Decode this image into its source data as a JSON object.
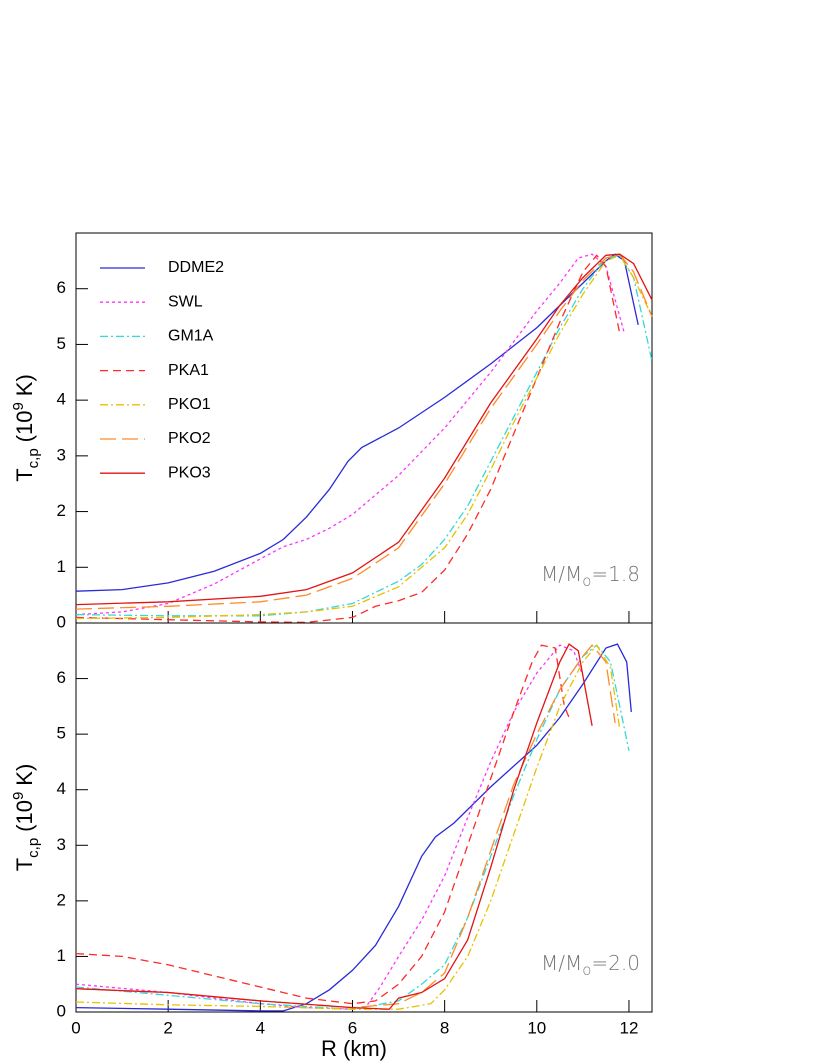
{
  "chart_data": [
    {
      "type": "line",
      "ylabel": {
        "main": "T",
        "sub": "c,p",
        "pre": "(10",
        "sup": "9",
        "post": "K)"
      },
      "annotation": {
        "main": "M/M",
        "sub": "o",
        "post": "=1.8"
      },
      "xlim": [
        0,
        12.5
      ],
      "ylim": [
        0,
        7
      ],
      "xticks": [
        0,
        2,
        4,
        6,
        8,
        10,
        12
      ],
      "xtick_labels": false,
      "yticks": [
        0,
        1,
        2,
        3,
        4,
        5,
        6
      ],
      "legend": "upper left",
      "series": [
        {
          "name": "DDME2",
          "color": "#2a2ad8",
          "dash": "none",
          "x": [
            0,
            1,
            2,
            3,
            4,
            4.5,
            5,
            5.5,
            5.9,
            6.2,
            7,
            8,
            9,
            10,
            11,
            11.5,
            11.7,
            11.9,
            12.2
          ],
          "values": [
            0.57,
            0.6,
            0.72,
            0.93,
            1.25,
            1.5,
            1.9,
            2.4,
            2.9,
            3.15,
            3.5,
            4.05,
            4.65,
            5.3,
            6.1,
            6.5,
            6.62,
            6.5,
            5.35
          ]
        },
        {
          "name": "SWL",
          "color": "#ff33ff",
          "dash": "3,3",
          "x": [
            0,
            1,
            2,
            3,
            4,
            4.5,
            5,
            5.5,
            6,
            7,
            8,
            9,
            10,
            10.5,
            10.9,
            11.2,
            11.5,
            11.9
          ],
          "values": [
            0.15,
            0.2,
            0.35,
            0.7,
            1.15,
            1.37,
            1.5,
            1.7,
            1.95,
            2.65,
            3.5,
            4.5,
            5.6,
            6.1,
            6.55,
            6.62,
            6.4,
            5.2
          ]
        },
        {
          "name": "GM1A",
          "color": "#33d8d8",
          "dash": "8,3,2,3",
          "x": [
            0,
            2,
            4,
            5,
            6,
            7,
            7.5,
            8,
            8.5,
            9,
            9.5,
            10,
            10.5,
            11,
            11.5,
            11.8,
            12.1,
            12.5
          ],
          "values": [
            0.15,
            0.13,
            0.13,
            0.2,
            0.35,
            0.75,
            1.05,
            1.5,
            2.1,
            2.9,
            3.7,
            4.5,
            5.3,
            6.0,
            6.55,
            6.6,
            6.2,
            4.7
          ]
        },
        {
          "name": "PKA1",
          "color": "#ff2a2a",
          "dash": "8,5",
          "x": [
            0,
            2,
            4,
            5,
            6,
            6.5,
            7,
            7.5,
            8,
            8.5,
            9,
            9.5,
            10,
            10.5,
            11,
            11.3,
            11.5,
            11.8
          ],
          "values": [
            0.1,
            0.06,
            0.02,
            0.01,
            0.1,
            0.3,
            0.4,
            0.55,
            0.95,
            1.6,
            2.4,
            3.4,
            4.4,
            5.4,
            6.3,
            6.6,
            6.4,
            5.2
          ]
        },
        {
          "name": "PKO1",
          "color": "#e8c000",
          "dash": "8,3,2,3",
          "x": [
            0,
            2,
            4,
            5,
            6,
            7,
            8,
            8.5,
            9,
            9.5,
            10,
            10.5,
            11,
            11.5,
            11.8,
            12.1,
            12.5
          ],
          "values": [
            0.08,
            0.1,
            0.15,
            0.2,
            0.3,
            0.65,
            1.35,
            1.95,
            2.75,
            3.6,
            4.4,
            5.2,
            5.9,
            6.5,
            6.6,
            6.2,
            5.5
          ]
        },
        {
          "name": "PKO2",
          "color": "#ff8a2a",
          "dash": "16,6",
          "x": [
            0,
            2,
            4,
            5,
            6,
            7,
            8,
            9,
            10,
            10.5,
            11,
            11.5,
            11.8,
            12.1,
            12.5
          ],
          "values": [
            0.25,
            0.3,
            0.38,
            0.5,
            0.8,
            1.35,
            2.5,
            3.85,
            5.0,
            5.6,
            6.15,
            6.55,
            6.62,
            6.3,
            5.5
          ]
        },
        {
          "name": "PKO3",
          "color": "#e01515",
          "dash": "none",
          "x": [
            0,
            2,
            4,
            5,
            6,
            7,
            8,
            9,
            10,
            10.5,
            11,
            11.5,
            11.8,
            12.1,
            12.5
          ],
          "values": [
            0.33,
            0.38,
            0.48,
            0.6,
            0.9,
            1.45,
            2.6,
            3.95,
            5.1,
            5.7,
            6.2,
            6.6,
            6.62,
            6.45,
            5.8
          ]
        }
      ]
    },
    {
      "type": "line",
      "xlabel": "R (km)",
      "ylabel": {
        "main": "T",
        "sub": "c,p",
        "pre": "(10",
        "sup": "9",
        "post": "K)"
      },
      "annotation": {
        "main": "M/M",
        "sub": "o",
        "post": "=2.0"
      },
      "xlim": [
        0,
        12.5
      ],
      "ylim": [
        0,
        7
      ],
      "xticks": [
        0,
        2,
        4,
        6,
        8,
        10,
        12
      ],
      "xtick_labels": true,
      "yticks": [
        0,
        1,
        2,
        3,
        4,
        5,
        6
      ],
      "series": [
        {
          "color": "#2a2ad8",
          "dash": "none",
          "x": [
            0,
            2,
            4,
            4.5,
            5,
            5.5,
            6,
            6.5,
            7,
            7.5,
            7.8,
            8.2,
            9,
            10,
            10.5,
            11,
            11.5,
            11.75,
            11.95,
            12.05
          ],
          "values": [
            0.08,
            0.05,
            0.02,
            0.02,
            0.15,
            0.4,
            0.75,
            1.2,
            1.9,
            2.8,
            3.15,
            3.4,
            4.05,
            4.8,
            5.3,
            5.9,
            6.55,
            6.62,
            6.3,
            5.4
          ]
        },
        {
          "color": "#ff33ff",
          "dash": "3,3",
          "x": [
            0,
            2,
            4,
            5,
            6,
            6.3,
            6.6,
            7,
            7.5,
            8,
            8.5,
            9,
            9.5,
            10,
            10.5,
            10.8,
            11
          ],
          "values": [
            0.5,
            0.35,
            0.15,
            0.08,
            0.05,
            0.1,
            0.45,
            1.0,
            1.65,
            2.45,
            3.5,
            4.5,
            5.4,
            6.1,
            6.6,
            6.5,
            6.05
          ]
        },
        {
          "color": "#33d8d8",
          "dash": "8,3,2,3",
          "x": [
            0,
            2,
            4,
            6,
            7,
            7.5,
            8,
            8.5,
            9,
            9.5,
            10,
            10.5,
            11,
            11.3,
            11.6,
            12
          ],
          "values": [
            0.45,
            0.3,
            0.15,
            0.05,
            0.2,
            0.5,
            0.85,
            1.7,
            2.8,
            3.9,
            4.9,
            5.8,
            6.4,
            6.6,
            6.3,
            4.7
          ]
        },
        {
          "color": "#ff2a2a",
          "dash": "8,5",
          "x": [
            0,
            1,
            2,
            3,
            4,
            5,
            6,
            6.5,
            7,
            7.5,
            8,
            8.5,
            9,
            9.5,
            9.9,
            10.1,
            10.4,
            10.6,
            10.7
          ],
          "values": [
            1.05,
            1.0,
            0.85,
            0.65,
            0.45,
            0.25,
            0.15,
            0.2,
            0.5,
            1.0,
            1.8,
            3.0,
            4.2,
            5.4,
            6.3,
            6.6,
            6.55,
            5.5,
            5.3
          ]
        },
        {
          "color": "#e8c000",
          "dash": "8,3,2,3",
          "x": [
            0,
            2,
            4,
            6,
            7,
            7.7,
            8,
            8.5,
            9,
            9.5,
            10,
            10.5,
            11,
            11.3,
            11.6,
            11.8
          ],
          "values": [
            0.18,
            0.13,
            0.1,
            0.05,
            0.05,
            0.15,
            0.4,
            1.0,
            2.0,
            3.2,
            4.4,
            5.5,
            6.3,
            6.6,
            6.2,
            5.1
          ]
        },
        {
          "color": "#ff8a2a",
          "dash": "16,6",
          "x": [
            0,
            2,
            4,
            6,
            7,
            7.5,
            8,
            8.5,
            9,
            9.5,
            10,
            10.5,
            11,
            11.2,
            11.5,
            11.7
          ],
          "values": [
            0.42,
            0.35,
            0.2,
            0.08,
            0.15,
            0.35,
            0.7,
            1.7,
            2.9,
            4.1,
            5.0,
            5.8,
            6.4,
            6.6,
            6.3,
            5.2
          ]
        },
        {
          "color": "#e01515",
          "dash": "none",
          "x": [
            0,
            2,
            4,
            6,
            6.8,
            7,
            7.5,
            8,
            8.5,
            9,
            9.5,
            10,
            10.5,
            10.7,
            10.9,
            11.2
          ],
          "values": [
            0.42,
            0.35,
            0.2,
            0.08,
            0.05,
            0.25,
            0.35,
            0.6,
            1.3,
            2.6,
            4.0,
            5.2,
            6.3,
            6.62,
            6.5,
            5.15
          ]
        }
      ]
    }
  ]
}
